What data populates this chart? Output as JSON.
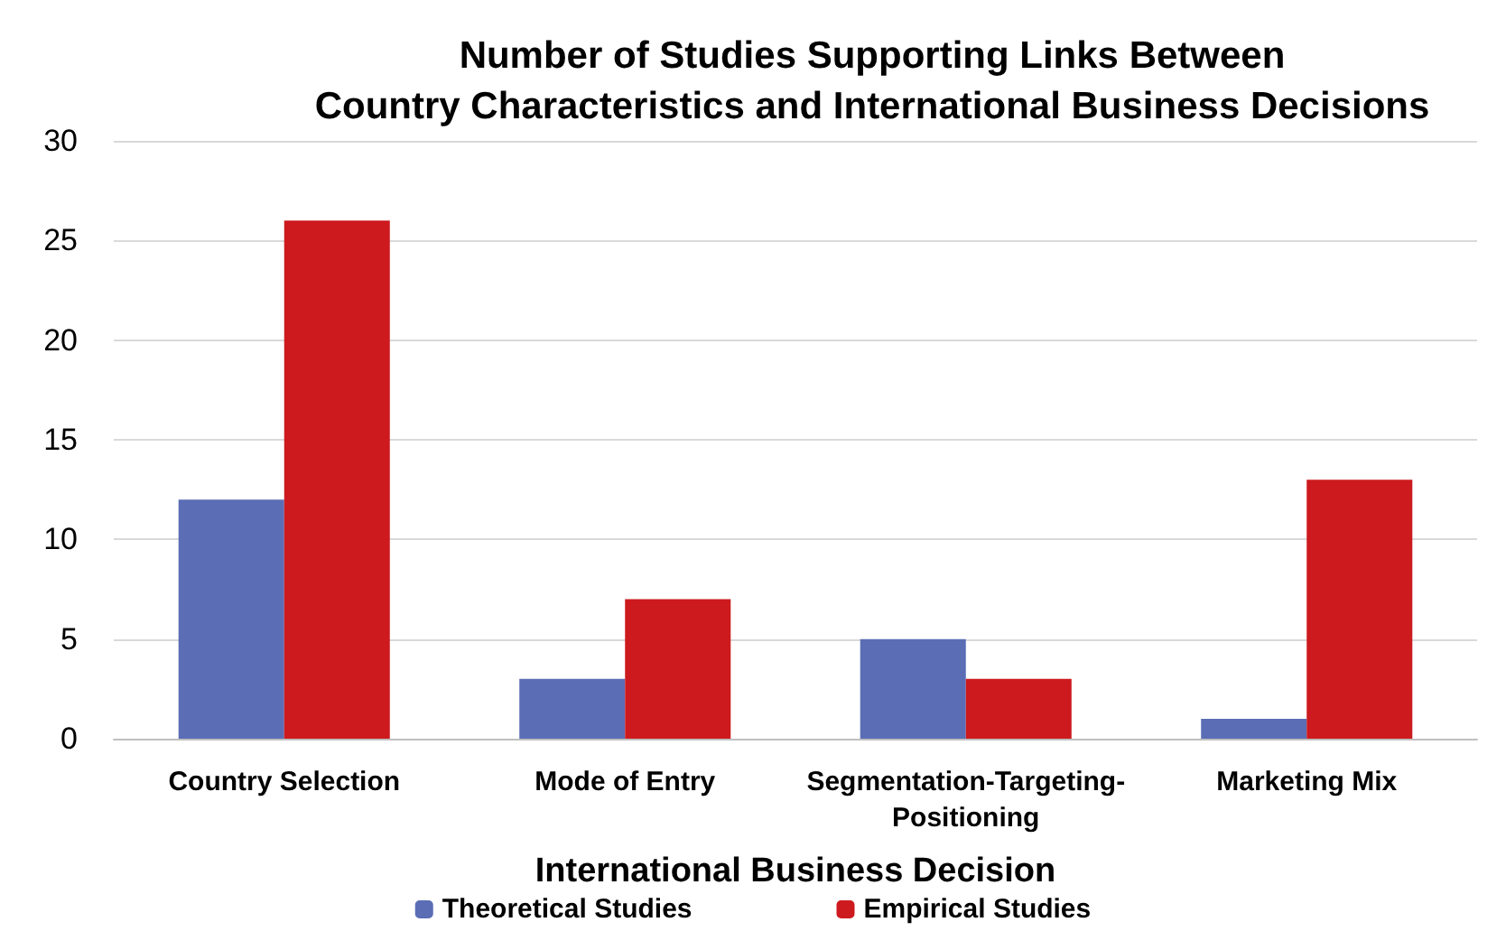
{
  "chart_data": {
    "type": "bar",
    "title": "Number of Studies Supporting Links Between\nCountry Characteristics and International Business Decisions",
    "xlabel": "International Business Decision",
    "categories": [
      "Country Selection",
      "Mode of Entry",
      "Segmentation-Targeting-Positioning",
      "Marketing Mix"
    ],
    "series": [
      {
        "name": "Theoretical Studies",
        "color": "#5b6db5",
        "values": [
          12,
          3,
          5,
          1
        ]
      },
      {
        "name": "Empirical Studies",
        "color": "#cc1a1e",
        "values": [
          26,
          7,
          3,
          13
        ]
      }
    ],
    "ylim": [
      0,
      30
    ],
    "yticks": [
      0,
      5,
      10,
      15,
      20,
      25,
      30
    ],
    "grid": "y",
    "legend": "bottom"
  }
}
